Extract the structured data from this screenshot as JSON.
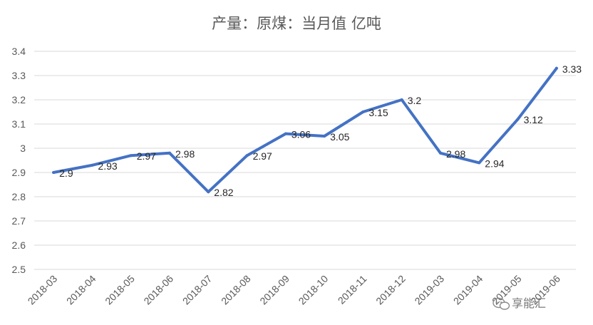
{
  "chart_data": {
    "type": "line",
    "title": "产量：原煤：当月值 亿吨",
    "categories": [
      "2018-03",
      "2018-04",
      "2018-05",
      "2018-06",
      "2018-07",
      "2018-08",
      "2018-09",
      "2018-10",
      "2018-11",
      "2018-12",
      "2019-03",
      "2019-04",
      "2019-05",
      "2019-06"
    ],
    "series": [
      {
        "values": [
          2.9,
          2.93,
          2.97,
          2.98,
          2.82,
          2.97,
          3.06,
          3.05,
          3.15,
          3.2,
          2.98,
          2.94,
          3.12,
          3.33
        ],
        "color": "#4472C4"
      }
    ],
    "data_labels": [
      "2.9",
      "2.93",
      "2.97",
      "2.98",
      "2.82",
      "2.97",
      "3.06",
      "3.05",
      "3.15",
      "3.2",
      "2.98",
      "2.94",
      "3.12",
      "3.33"
    ],
    "y_ticks": [
      "2.5",
      "2.6",
      "2.7",
      "2.8",
      "2.9",
      "3",
      "3.1",
      "3.2",
      "3.3",
      "3.4"
    ],
    "ylim": [
      2.5,
      3.4
    ],
    "grid": true,
    "legend": "none",
    "gridline_color": "#d9d9d9"
  },
  "watermark": {
    "icon": "wechat-icon",
    "text": "享能汇"
  }
}
